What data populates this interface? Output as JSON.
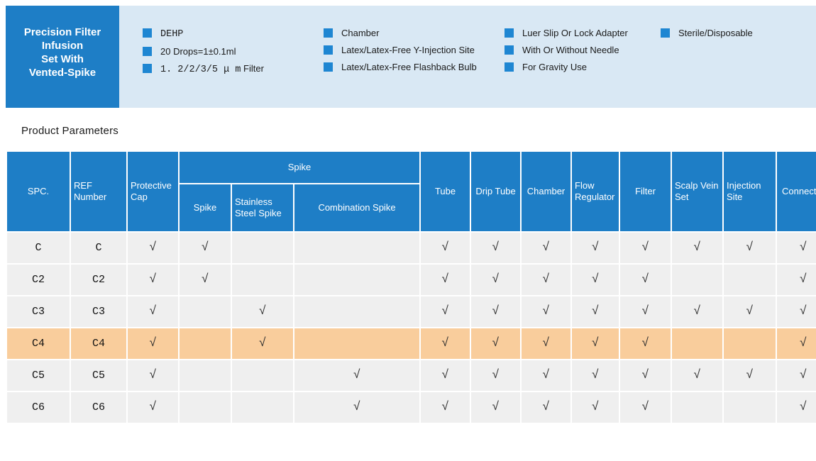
{
  "colors": {
    "primary_blue": "#1e7ec6",
    "accent_blue": "#1e86d2",
    "band_blue": "#d9e8f4",
    "row_grey": "#efefef",
    "highlight_orange": "#f9cd9c",
    "check_color": "#2f2f2f",
    "text_dark": "#1a1a1a"
  },
  "banner": {
    "title": "Precision Filter Infusion Set With Vented-Spike",
    "title_lines": [
      "Precision Filter",
      "Infusion",
      "Set With",
      "Vented-Spike"
    ],
    "feature_columns": [
      {
        "items": [
          {
            "parts": [
              {
                "t": "DEHP",
                "mono": true
              }
            ]
          },
          {
            "parts": [
              {
                "t": "20 Drops=1±0.1ml",
                "mono": false
              }
            ]
          },
          {
            "parts": [
              {
                "t": "1. 2/2/3/5 μ m",
                "mono": true
              },
              {
                "t": " Filter",
                "mono": false
              }
            ]
          }
        ]
      },
      {
        "items": [
          {
            "parts": [
              {
                "t": "Chamber",
                "mono": false
              }
            ]
          },
          {
            "parts": [
              {
                "t": "Latex/Latex-Free Y-Injection Site",
                "mono": false
              }
            ]
          },
          {
            "parts": [
              {
                "t": "Latex/Latex-Free Flashback Bulb",
                "mono": false
              }
            ]
          }
        ]
      },
      {
        "items": [
          {
            "parts": [
              {
                "t": "Luer Slip Or Lock Adapter",
                "mono": false
              }
            ]
          },
          {
            "parts": [
              {
                "t": "With Or Without Needle",
                "mono": false
              }
            ]
          },
          {
            "parts": [
              {
                "t": "For Gravity Use",
                "mono": false
              }
            ]
          }
        ]
      },
      {
        "items": [
          {
            "parts": [
              {
                "t": "Sterile/Disposable",
                "mono": false
              }
            ]
          }
        ]
      }
    ]
  },
  "section": {
    "title": "Product Parameters"
  },
  "table": {
    "check_char": "√",
    "header": {
      "spc": "SPC.",
      "ref": "REF Number",
      "cap": "Protective Cap",
      "spike_group": "Spike",
      "spike": "Spike",
      "steel": "Stainless Steel Spike",
      "combo": "Combination Spike",
      "tube": "Tube",
      "drip": "Drip Tube",
      "chamber": "Chamber",
      "flow": "Flow Regulator",
      "filter": "Filter",
      "scalp": "Scalp Vein Set",
      "inj": "Injection Site",
      "conn": "Connector"
    },
    "check_keys": [
      "cap",
      "spike",
      "steel",
      "combo",
      "tube",
      "drip",
      "chamber",
      "flow",
      "filter",
      "scalp",
      "inj",
      "conn"
    ],
    "rows": [
      {
        "spc": "C",
        "ref": "C",
        "highlight": false,
        "checks": {
          "cap": 1,
          "spike": 1,
          "steel": 0,
          "combo": 0,
          "tube": 1,
          "drip": 1,
          "chamber": 1,
          "flow": 1,
          "filter": 1,
          "scalp": 1,
          "inj": 1,
          "conn": 1
        }
      },
      {
        "spc": "C2",
        "ref": "C2",
        "highlight": false,
        "checks": {
          "cap": 1,
          "spike": 1,
          "steel": 0,
          "combo": 0,
          "tube": 1,
          "drip": 1,
          "chamber": 1,
          "flow": 1,
          "filter": 1,
          "scalp": 0,
          "inj": 0,
          "conn": 1
        }
      },
      {
        "spc": "C3",
        "ref": "C3",
        "highlight": false,
        "checks": {
          "cap": 1,
          "spike": 0,
          "steel": 1,
          "combo": 0,
          "tube": 1,
          "drip": 1,
          "chamber": 1,
          "flow": 1,
          "filter": 1,
          "scalp": 1,
          "inj": 1,
          "conn": 1
        }
      },
      {
        "spc": "C4",
        "ref": "C4",
        "highlight": true,
        "checks": {
          "cap": 1,
          "spike": 0,
          "steel": 1,
          "combo": 0,
          "tube": 1,
          "drip": 1,
          "chamber": 1,
          "flow": 1,
          "filter": 1,
          "scalp": 0,
          "inj": 0,
          "conn": 1
        }
      },
      {
        "spc": "C5",
        "ref": "C5",
        "highlight": false,
        "checks": {
          "cap": 1,
          "spike": 0,
          "steel": 0,
          "combo": 1,
          "tube": 1,
          "drip": 1,
          "chamber": 1,
          "flow": 1,
          "filter": 1,
          "scalp": 1,
          "inj": 1,
          "conn": 1
        }
      },
      {
        "spc": "C6",
        "ref": "C6",
        "highlight": false,
        "checks": {
          "cap": 1,
          "spike": 0,
          "steel": 0,
          "combo": 1,
          "tube": 1,
          "drip": 1,
          "chamber": 1,
          "flow": 1,
          "filter": 1,
          "scalp": 0,
          "inj": 0,
          "conn": 1
        }
      }
    ]
  }
}
